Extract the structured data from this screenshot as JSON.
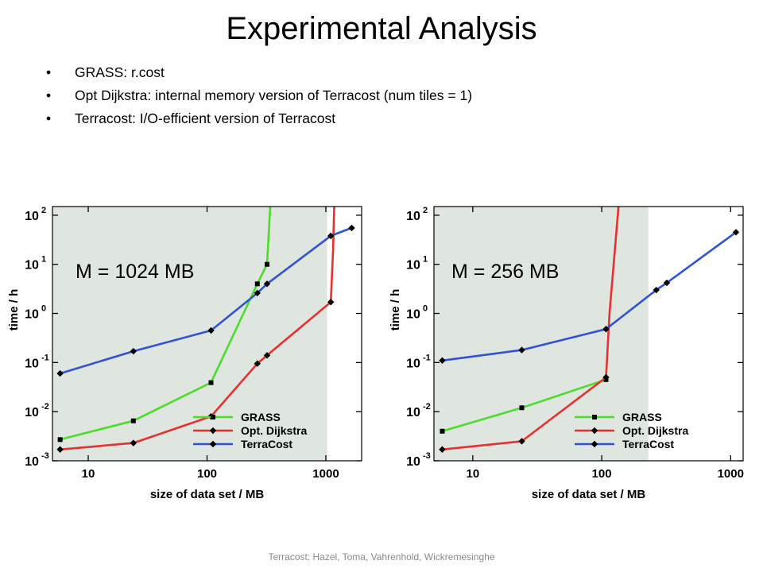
{
  "slide": {
    "title": "Experimental Analysis",
    "bullets": [
      "GRASS: r.cost",
      "Opt Dijkstra: internal memory version of Terracost (num tiles = 1)",
      "Terracost: I/O-efficient version of Terracost"
    ],
    "footer": "Terracost: Hazel, Toma, Vahrenhold, Wickremesinghe"
  },
  "colors": {
    "plot_bg": "#dfe5df",
    "grass": "#4ddc2c",
    "dijkstra": "#e83030",
    "terracost": "#2f52d8"
  },
  "chart_data": [
    {
      "type": "line",
      "annotation": "M = 1024 MB",
      "xlabel": "size of data set / MB",
      "ylabel": "time / h",
      "xscale": "log",
      "yscale": "log",
      "xlim": [
        5,
        2000
      ],
      "ylim": [
        0.001,
        150
      ],
      "memory_limit_x": 1024,
      "xticks": [
        10,
        100,
        1000
      ],
      "xtick_labels": [
        "10",
        "100",
        "1000"
      ],
      "yticks": [
        0.001,
        0.01,
        0.1,
        1,
        10,
        100
      ],
      "ytick_labels": [
        [
          "10",
          "-3"
        ],
        [
          "10",
          "-2"
        ],
        [
          "10",
          "-1"
        ],
        [
          "10",
          "0"
        ],
        [
          "10",
          "1"
        ],
        [
          "10",
          "2"
        ]
      ],
      "legend_position": "bottom-right",
      "series": [
        {
          "name": "GRASS",
          "color_key": "grass",
          "marker": "square",
          "x": [
            5.8,
            24,
            108,
            265,
            320,
            340
          ],
          "y": [
            0.0027,
            0.0065,
            0.039,
            4,
            10,
            150
          ],
          "markers": [
            true,
            true,
            true,
            true,
            true,
            false
          ]
        },
        {
          "name": "Opt. Dijkstra",
          "color_key": "dijkstra",
          "marker": "diamond",
          "x": [
            5.8,
            24,
            108,
            265,
            320,
            1100,
            1150,
            1175
          ],
          "y": [
            0.0017,
            0.0023,
            0.008,
            0.095,
            0.14,
            1.7,
            20,
            150
          ],
          "markers": [
            true,
            true,
            true,
            true,
            true,
            true,
            false,
            false
          ]
        },
        {
          "name": "TerraCost",
          "color_key": "terracost",
          "marker": "diamond",
          "x": [
            5.8,
            24,
            108,
            265,
            320,
            1100,
            1650
          ],
          "y": [
            0.06,
            0.17,
            0.45,
            2.6,
            4,
            38,
            55
          ],
          "markers": [
            true,
            true,
            true,
            true,
            true,
            true,
            true
          ]
        }
      ]
    },
    {
      "type": "line",
      "annotation": "M = 256 MB",
      "xlabel": "size of data set / MB",
      "ylabel": "time / h",
      "xscale": "log",
      "yscale": "log",
      "xlim": [
        5,
        1250
      ],
      "ylim": [
        0.001,
        150
      ],
      "memory_limit_x": 230,
      "xticks": [
        10,
        100,
        1000
      ],
      "xtick_labels": [
        "10",
        "100",
        "1000"
      ],
      "yticks": [
        0.001,
        0.01,
        0.1,
        1,
        10,
        100
      ],
      "ytick_labels": [
        [
          "10",
          "-3"
        ],
        [
          "10",
          "-2"
        ],
        [
          "10",
          "-1"
        ],
        [
          "10",
          "0"
        ],
        [
          "10",
          "1"
        ],
        [
          "10",
          "2"
        ]
      ],
      "legend_position": "bottom-right",
      "series": [
        {
          "name": "GRASS",
          "color_key": "grass",
          "marker": "square",
          "x": [
            5.8,
            24,
            108
          ],
          "y": [
            0.004,
            0.012,
            0.045
          ],
          "markers": [
            true,
            true,
            true
          ]
        },
        {
          "name": "Opt. Dijkstra",
          "color_key": "dijkstra",
          "marker": "diamond",
          "x": [
            5.8,
            24,
            108,
            115,
            135
          ],
          "y": [
            0.0017,
            0.0025,
            0.05,
            1,
            150
          ],
          "markers": [
            true,
            true,
            true,
            false,
            false
          ]
        },
        {
          "name": "TerraCost",
          "color_key": "terracost",
          "marker": "diamond",
          "x": [
            5.8,
            24,
            108,
            265,
            320,
            1100
          ],
          "y": [
            0.11,
            0.18,
            0.48,
            3,
            4.2,
            45
          ],
          "markers": [
            true,
            true,
            true,
            true,
            true,
            true
          ]
        }
      ]
    }
  ]
}
